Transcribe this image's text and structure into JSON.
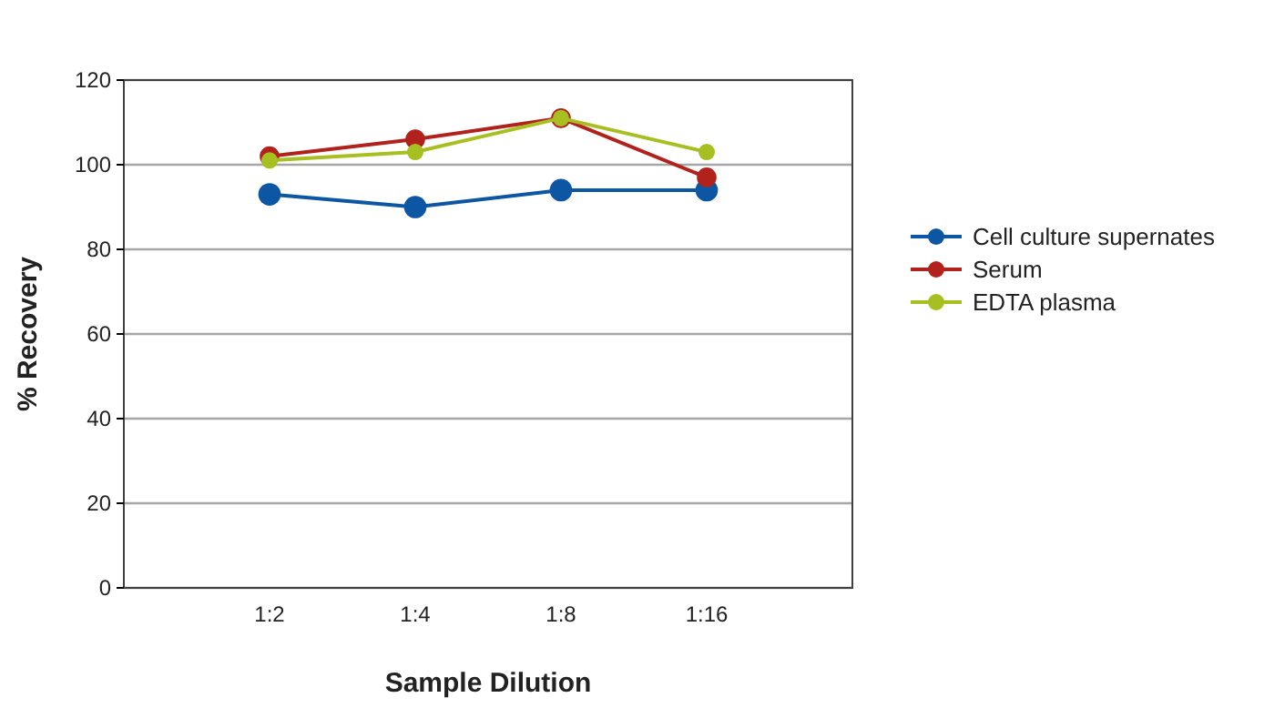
{
  "chart_data": {
    "type": "line",
    "xlabel": "Sample Dilution",
    "ylabel": "% Recovery",
    "categories": [
      "1:2",
      "1:4",
      "1:8",
      "1:16"
    ],
    "series": [
      {
        "name": "Cell culture supernates",
        "color": "#0d56a4",
        "values": [
          93,
          90,
          94,
          94
        ]
      },
      {
        "name": "Serum",
        "color": "#b2221c",
        "values": [
          102,
          106,
          111,
          97
        ]
      },
      {
        "name": "EDTA plasma",
        "color": "#a8bf22",
        "values": [
          101,
          103,
          111,
          103
        ]
      }
    ],
    "ylim": [
      0,
      120
    ],
    "yticks": [
      0,
      20,
      40,
      60,
      80,
      100,
      120
    ],
    "grid": "y",
    "legend": "right",
    "marker": "circle"
  }
}
